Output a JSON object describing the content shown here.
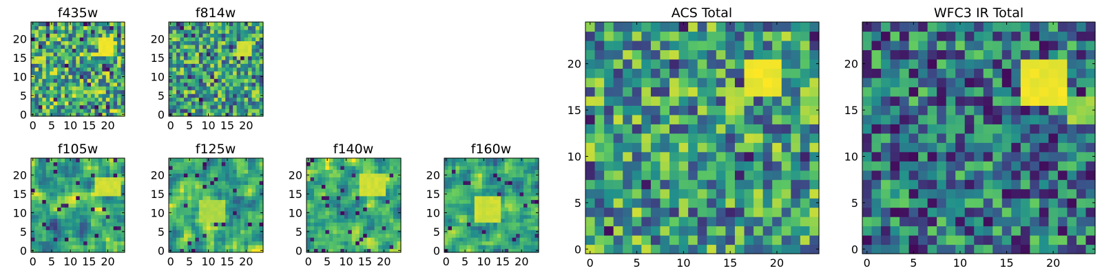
{
  "figure": {
    "background": "#ffffff",
    "colormap": "viridis",
    "colormap_stops": [
      "#440154",
      "#3b528b",
      "#21918c",
      "#5ec962",
      "#fde725"
    ]
  },
  "chart_data": [
    {
      "type": "heatmap",
      "title": "f435w",
      "xlabel": "",
      "ylabel": "",
      "xlim": [
        0,
        24
      ],
      "ylim": [
        0,
        24
      ],
      "xticks": [
        "0",
        "5",
        "10",
        "15",
        "20"
      ],
      "yticks": [
        "0",
        "5",
        "10",
        "15",
        "20"
      ],
      "grid": false,
      "origin": "lower",
      "bright_region": {
        "x": [
          18,
          21
        ],
        "y": [
          16,
          20
        ],
        "level": 1.0
      },
      "texture": "noisy-uniform",
      "mean_level": 0.6
    },
    {
      "type": "heatmap",
      "title": "f814w",
      "xlabel": "",
      "ylabel": "",
      "xlim": [
        0,
        24
      ],
      "ylim": [
        0,
        24
      ],
      "xticks": [
        "0",
        "5",
        "10",
        "15",
        "20"
      ],
      "yticks": [
        "0",
        "5",
        "10",
        "15",
        "20"
      ],
      "grid": false,
      "origin": "lower",
      "bright_region": {
        "x": [
          18,
          21
        ],
        "y": [
          16,
          19
        ],
        "level": 0.95
      },
      "texture": "noisy-uniform",
      "mean_level": 0.55
    },
    {
      "type": "heatmap",
      "title": "f105w",
      "xlabel": "",
      "ylabel": "",
      "xlim": [
        0,
        24
      ],
      "ylim": [
        0,
        24
      ],
      "xticks": [
        "0",
        "5",
        "10",
        "15",
        "20"
      ],
      "yticks": [
        "0",
        "5",
        "10",
        "15",
        "20"
      ],
      "grid": false,
      "origin": "lower",
      "bright_region": {
        "x": [
          17,
          23
        ],
        "y": [
          15,
          19
        ],
        "level": 0.95
      },
      "texture": "smooth-clumpy",
      "mean_level": 0.58
    },
    {
      "type": "heatmap",
      "title": "f125w",
      "xlabel": "",
      "ylabel": "",
      "xlim": [
        0,
        24
      ],
      "ylim": [
        0,
        24
      ],
      "xticks": [
        "0",
        "5",
        "10",
        "15",
        "20"
      ],
      "yticks": [
        "0",
        "5",
        "10",
        "15",
        "20"
      ],
      "grid": false,
      "origin": "lower",
      "bright_region": {
        "x": [
          8,
          14
        ],
        "y": [
          8,
          13
        ],
        "level": 0.9
      },
      "texture": "smooth-clumpy",
      "mean_level": 0.6
    },
    {
      "type": "heatmap",
      "title": "f140w",
      "xlabel": "",
      "ylabel": "",
      "xlim": [
        0,
        24
      ],
      "ylim": [
        0,
        24
      ],
      "xticks": [
        "0",
        "5",
        "10",
        "15",
        "20"
      ],
      "yticks": [
        "0",
        "5",
        "10",
        "15",
        "20"
      ],
      "grid": false,
      "origin": "lower",
      "bright_region": {
        "x": [
          14,
          20
        ],
        "y": [
          15,
          20
        ],
        "level": 0.95
      },
      "texture": "smooth-clumpy",
      "mean_level": 0.62
    },
    {
      "type": "heatmap",
      "title": "f160w",
      "xlabel": "",
      "ylabel": "",
      "xlim": [
        0,
        24
      ],
      "ylim": [
        0,
        24
      ],
      "xticks": [
        "0",
        "5",
        "10",
        "15",
        "20"
      ],
      "yticks": [
        "0",
        "5",
        "10",
        "15",
        "20"
      ],
      "grid": false,
      "origin": "lower",
      "bright_region": {
        "x": [
          8,
          14
        ],
        "y": [
          8,
          14
        ],
        "level": 0.95
      },
      "texture": "smooth-clumpy",
      "mean_level": 0.6
    },
    {
      "type": "heatmap",
      "title": "ACS Total",
      "xlabel": "",
      "ylabel": "",
      "xlim": [
        0,
        24
      ],
      "ylim": [
        0,
        24
      ],
      "xticks": [
        "0",
        "5",
        "10",
        "15",
        "20"
      ],
      "yticks": [
        "0",
        "5",
        "10",
        "15",
        "20"
      ],
      "grid": false,
      "origin": "lower",
      "bright_region": {
        "x": [
          17,
          20
        ],
        "y": [
          17,
          20
        ],
        "level": 1.0
      },
      "secondary_bright": {
        "x": [
          23,
          24
        ],
        "y": [
          14,
          17
        ],
        "level": 0.9
      },
      "texture": "noisy-uniform",
      "mean_level": 0.55
    },
    {
      "type": "heatmap",
      "title": "WFC3 IR Total",
      "xlabel": "",
      "ylabel": "",
      "xlim": [
        0,
        24
      ],
      "ylim": [
        0,
        24
      ],
      "xticks": [
        "0",
        "5",
        "10",
        "15",
        "20"
      ],
      "yticks": [
        "0",
        "5",
        "10",
        "15",
        "20"
      ],
      "grid": false,
      "origin": "lower",
      "bright_region": {
        "x": [
          17,
          21
        ],
        "y": [
          16,
          20
        ],
        "level": 1.0
      },
      "secondary_bright": {
        "x": [
          22,
          24
        ],
        "y": [
          14,
          16
        ],
        "level": 0.9
      },
      "texture": "noisy-uniform",
      "mean_level": 0.4
    }
  ]
}
